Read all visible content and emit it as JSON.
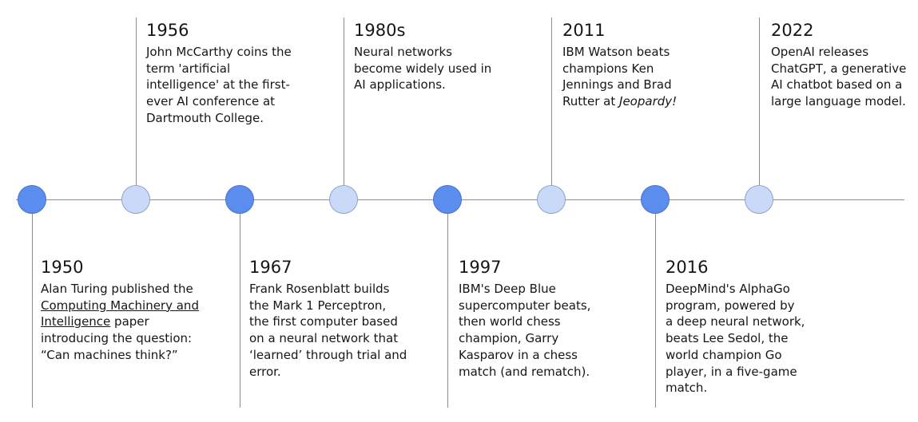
{
  "timeline": {
    "events": [
      {
        "year": "1950",
        "pre": "Alan Turing published the ",
        "link": "Computing Machinery and Intelligence",
        "post": " paper introducing the question: “Can machines think?”"
      },
      {
        "year": "1956",
        "text": "John McCarthy coins the term 'artificial intelligence' at the first-ever AI conference at Dartmouth College."
      },
      {
        "year": "1967",
        "text": "Frank Rosenblatt builds the Mark 1 Perceptron, the first computer based on a neural network that ‘learned’ through trial and error."
      },
      {
        "year": "1980s",
        "text": "Neural networks become widely used in AI applications."
      },
      {
        "year": "1997",
        "text": "IBM's Deep Blue supercomputer beats, then world chess champion, Garry Kasparov in a chess match (and rematch)."
      },
      {
        "year": "2011",
        "pre": "IBM Watson beats champions Ken Jennings and Brad Rutter at ",
        "italic": "Jeopardy!"
      },
      {
        "year": "2016",
        "text": "DeepMind's AlphaGo program, powered by a deep neural network, beats Lee Sedol, the world champion Go player, in a five-game match."
      },
      {
        "year": "2022",
        "text": "OpenAI releases ChatGPT, a generative AI chatbot based on a large language model."
      }
    ]
  },
  "colors": {
    "node_dark": "#5b8def",
    "node_light": "#c9daf8",
    "line": "#8d8d8d",
    "text": "#161616"
  }
}
